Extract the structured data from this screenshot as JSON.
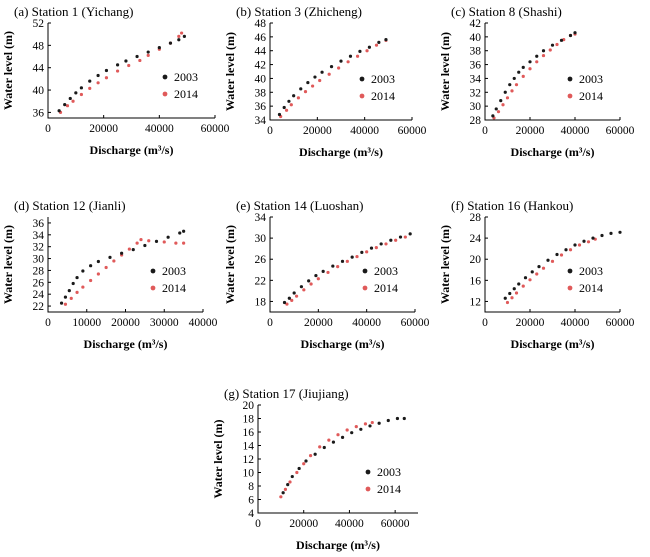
{
  "figure": {
    "colors": {
      "s2003": "#1a1a1a",
      "s2014": "#e05a5a",
      "axis": "#000000"
    },
    "legend_labels": [
      "2003",
      "2014"
    ],
    "xlabel": "Discharge (m³/s)",
    "ylabel": "Water level (m)"
  },
  "chart_data": [
    {
      "type": "scatter",
      "title": "(a) Station 1 (Yichang)",
      "xlabel": "Discharge (m³/s)",
      "ylabel": "Water level (m)",
      "xlim": [
        0,
        60000
      ],
      "ylim": [
        35,
        52
      ],
      "xticks": [
        0,
        20000,
        40000,
        60000
      ],
      "yticks": [
        36,
        40,
        44,
        48,
        52
      ],
      "legend": "right",
      "series": [
        {
          "name": "2003",
          "points": [
            [
              4000,
              36.3
            ],
            [
              6000,
              37.4
            ],
            [
              8000,
              38.5
            ],
            [
              10000,
              39.5
            ],
            [
              12000,
              40.4
            ],
            [
              15000,
              41.6
            ],
            [
              18000,
              42.6
            ],
            [
              21000,
              43.5
            ],
            [
              25000,
              44.5
            ],
            [
              28000,
              45.2
            ],
            [
              32000,
              46.0
            ],
            [
              36000,
              46.8
            ],
            [
              40000,
              47.6
            ],
            [
              44000,
              48.4
            ],
            [
              47000,
              49.0
            ],
            [
              49000,
              49.6
            ]
          ]
        },
        {
          "name": "2014",
          "points": [
            [
              4500,
              36.0
            ],
            [
              7000,
              37.2
            ],
            [
              9000,
              38.0
            ],
            [
              12000,
              39.2
            ],
            [
              15000,
              40.3
            ],
            [
              18000,
              41.3
            ],
            [
              21000,
              42.2
            ],
            [
              25000,
              43.4
            ],
            [
              29000,
              44.4
            ],
            [
              33000,
              45.3
            ],
            [
              36000,
              46.2
            ],
            [
              40000,
              47.3
            ],
            [
              44000,
              48.4
            ],
            [
              47000,
              49.6
            ],
            [
              48000,
              50.2
            ]
          ]
        }
      ]
    },
    {
      "type": "scatter",
      "title": "(b) Station 3 (Zhicheng)",
      "xlabel": "Discharge (m³/s)",
      "ylabel": "Water level (m)",
      "xlim": [
        0,
        60000
      ],
      "ylim": [
        34,
        48
      ],
      "xticks": [
        0,
        20000,
        40000,
        60000
      ],
      "yticks": [
        34,
        36,
        38,
        40,
        42,
        44,
        46,
        48
      ],
      "legend": "right",
      "series": [
        {
          "name": "2003",
          "points": [
            [
              4000,
              34.8
            ],
            [
              6000,
              35.8
            ],
            [
              8000,
              36.7
            ],
            [
              10000,
              37.5
            ],
            [
              13000,
              38.5
            ],
            [
              16000,
              39.4
            ],
            [
              19000,
              40.2
            ],
            [
              22000,
              40.9
            ],
            [
              26000,
              41.7
            ],
            [
              30000,
              42.5
            ],
            [
              34000,
              43.2
            ],
            [
              38000,
              43.9
            ],
            [
              42000,
              44.5
            ],
            [
              46000,
              45.2
            ],
            [
              49000,
              45.6
            ]
          ]
        },
        {
          "name": "2014",
          "points": [
            [
              4500,
              34.5
            ],
            [
              7000,
              35.4
            ],
            [
              9000,
              36.2
            ],
            [
              12000,
              37.2
            ],
            [
              15000,
              38.1
            ],
            [
              18000,
              38.9
            ],
            [
              21000,
              39.7
            ],
            [
              25000,
              40.6
            ],
            [
              29000,
              41.5
            ],
            [
              33000,
              42.4
            ],
            [
              37000,
              43.2
            ],
            [
              41000,
              44.0
            ],
            [
              45000,
              44.8
            ],
            [
              49000,
              45.5
            ]
          ]
        }
      ]
    },
    {
      "type": "scatter",
      "title": "(c) Station 8 (Shashi)",
      "xlabel": "Discharge (m³/s)",
      "ylabel": "Water level (m)",
      "xlim": [
        0,
        60000
      ],
      "ylim": [
        28,
        42
      ],
      "xticks": [
        0,
        20000,
        40000,
        60000
      ],
      "yticks": [
        28,
        30,
        32,
        34,
        36,
        38,
        40,
        42
      ],
      "legend": "right",
      "series": [
        {
          "name": "2003",
          "points": [
            [
              3500,
              28.6
            ],
            [
              5000,
              29.6
            ],
            [
              7000,
              30.8
            ],
            [
              9000,
              32.0
            ],
            [
              11000,
              33.1
            ],
            [
              13000,
              34.0
            ],
            [
              15000,
              34.9
            ],
            [
              17000,
              35.6
            ],
            [
              20000,
              36.4
            ],
            [
              23000,
              37.2
            ],
            [
              26000,
              38.0
            ],
            [
              30000,
              38.8
            ],
            [
              34000,
              39.5
            ],
            [
              38000,
              40.2
            ],
            [
              40000,
              40.6
            ]
          ]
        },
        {
          "name": "2014",
          "points": [
            [
              4000,
              28.3
            ],
            [
              6000,
              29.2
            ],
            [
              8000,
              30.2
            ],
            [
              10000,
              31.2
            ],
            [
              12000,
              32.2
            ],
            [
              14000,
              33.1
            ],
            [
              17000,
              34.3
            ],
            [
              20000,
              35.4
            ],
            [
              23000,
              36.4
            ],
            [
              26000,
              37.3
            ],
            [
              29000,
              38.1
            ],
            [
              32000,
              38.9
            ],
            [
              35000,
              39.6
            ],
            [
              38000,
              40.2
            ],
            [
              40000,
              40.4
            ]
          ]
        }
      ]
    },
    {
      "type": "scatter",
      "title": "(d) Station 12 (Jianli)",
      "xlabel": "Discharge (m³/s)",
      "ylabel": "Water level (m)",
      "xlim": [
        0,
        40000
      ],
      "ylim": [
        21,
        37
      ],
      "xticks": [
        0,
        10000,
        20000,
        30000,
        40000
      ],
      "yticks": [
        22,
        24,
        26,
        28,
        30,
        32,
        34,
        36
      ],
      "legend": "right",
      "series": [
        {
          "name": "2003",
          "points": [
            [
              3500,
              22.5
            ],
            [
              4500,
              23.5
            ],
            [
              5500,
              24.6
            ],
            [
              6500,
              25.8
            ],
            [
              7500,
              26.8
            ],
            [
              9000,
              27.9
            ],
            [
              11000,
              28.8
            ],
            [
              13000,
              29.5
            ],
            [
              16000,
              30.2
            ],
            [
              19000,
              30.9
            ],
            [
              22000,
              31.5
            ],
            [
              25000,
              32.2
            ],
            [
              28000,
              32.9
            ],
            [
              31000,
              33.6
            ],
            [
              34000,
              34.3
            ],
            [
              35000,
              34.6
            ]
          ]
        },
        {
          "name": "2014",
          "points": [
            [
              4500,
              22.3
            ],
            [
              6000,
              23.3
            ],
            [
              7500,
              24.3
            ],
            [
              9000,
              25.2
            ],
            [
              11000,
              26.3
            ],
            [
              13000,
              27.4
            ],
            [
              15000,
              28.5
            ],
            [
              17000,
              29.6
            ],
            [
              19000,
              30.6
            ],
            [
              21000,
              31.6
            ],
            [
              23000,
              32.6
            ],
            [
              24000,
              33.2
            ],
            [
              26000,
              33.0
            ],
            [
              30000,
              32.8
            ],
            [
              33000,
              32.6
            ],
            [
              35000,
              32.6
            ]
          ]
        }
      ]
    },
    {
      "type": "scatter",
      "title": "(e) Station 14 (Luoshan)",
      "xlabel": "Discharge (m³/s)",
      "ylabel": "Water level (m)",
      "xlim": [
        0,
        60000
      ],
      "ylim": [
        16,
        34
      ],
      "xticks": [
        0,
        20000,
        40000,
        60000
      ],
      "yticks": [
        18,
        22,
        26,
        30,
        34
      ],
      "legend": "right",
      "series": [
        {
          "name": "2003",
          "points": [
            [
              6000,
              17.8
            ],
            [
              8000,
              18.6
            ],
            [
              10000,
              19.6
            ],
            [
              13000,
              20.8
            ],
            [
              16000,
              21.9
            ],
            [
              19000,
              22.9
            ],
            [
              22000,
              23.7
            ],
            [
              26000,
              24.7
            ],
            [
              30000,
              25.6
            ],
            [
              34000,
              26.4
            ],
            [
              38000,
              27.3
            ],
            [
              42000,
              28.1
            ],
            [
              46000,
              28.9
            ],
            [
              50000,
              29.6
            ],
            [
              54000,
              30.2
            ],
            [
              58000,
              30.8
            ]
          ]
        },
        {
          "name": "2014",
          "points": [
            [
              7000,
              17.5
            ],
            [
              9000,
              18.2
            ],
            [
              11000,
              19.0
            ],
            [
              14000,
              20.2
            ],
            [
              17000,
              21.3
            ],
            [
              20000,
              22.3
            ],
            [
              24000,
              23.5
            ],
            [
              28000,
              24.6
            ],
            [
              32000,
              25.6
            ],
            [
              36000,
              26.5
            ],
            [
              40000,
              27.4
            ],
            [
              44000,
              28.2
            ],
            [
              48000,
              28.9
            ],
            [
              52000,
              29.6
            ],
            [
              56000,
              30.2
            ]
          ]
        }
      ]
    },
    {
      "type": "scatter",
      "title": "(f) Station 16 (Hankou)",
      "xlabel": "Discharge (m³/s)",
      "ylabel": "Water level (m)",
      "xlim": [
        0,
        60000
      ],
      "ylim": [
        10,
        28
      ],
      "xticks": [
        0,
        20000,
        40000,
        60000
      ],
      "yticks": [
        12,
        16,
        20,
        24,
        28
      ],
      "legend": "right",
      "series": [
        {
          "name": "2003",
          "points": [
            [
              9000,
              12.6
            ],
            [
              11000,
              13.5
            ],
            [
              13000,
              14.4
            ],
            [
              15000,
              15.3
            ],
            [
              18000,
              16.5
            ],
            [
              21000,
              17.6
            ],
            [
              24000,
              18.6
            ],
            [
              28000,
              19.8
            ],
            [
              32000,
              20.9
            ],
            [
              36000,
              21.8
            ],
            [
              40000,
              22.7
            ],
            [
              44000,
              23.4
            ],
            [
              48000,
              24.0
            ],
            [
              52000,
              24.5
            ],
            [
              56000,
              24.9
            ],
            [
              60000,
              25.1
            ]
          ]
        },
        {
          "name": "2014",
          "points": [
            [
              10000,
              11.8
            ],
            [
              12000,
              12.7
            ],
            [
              14000,
              13.6
            ],
            [
              17000,
              14.9
            ],
            [
              20000,
              16.1
            ],
            [
              23000,
              17.2
            ],
            [
              26000,
              18.3
            ],
            [
              30000,
              19.6
            ],
            [
              34000,
              20.8
            ],
            [
              38000,
              21.8
            ],
            [
              42000,
              22.7
            ],
            [
              46000,
              23.3
            ],
            [
              49000,
              23.8
            ]
          ]
        }
      ]
    },
    {
      "type": "scatter",
      "title": "(g) Station 17 (Jiujiang)",
      "xlabel": "Discharge (m³/s)",
      "ylabel": "Water level (m)",
      "xlim": [
        0,
        70000
      ],
      "ylim": [
        4,
        20
      ],
      "xticks": [
        0,
        20000,
        40000,
        60000
      ],
      "yticks": [
        4,
        6,
        8,
        10,
        12,
        14,
        16,
        18,
        20
      ],
      "legend": "right",
      "series": [
        {
          "name": "2003",
          "points": [
            [
              11000,
              7.0
            ],
            [
              13000,
              8.2
            ],
            [
              15000,
              9.4
            ],
            [
              18000,
              10.6
            ],
            [
              21000,
              11.7
            ],
            [
              25000,
              12.7
            ],
            [
              29000,
              13.7
            ],
            [
              33000,
              14.5
            ],
            [
              37000,
              15.2
            ],
            [
              41000,
              15.9
            ],
            [
              45000,
              16.4
            ],
            [
              49000,
              16.9
            ],
            [
              53000,
              17.3
            ],
            [
              57000,
              17.7
            ],
            [
              61000,
              18.0
            ],
            [
              64000,
              18.0
            ]
          ]
        },
        {
          "name": "2014",
          "points": [
            [
              10000,
              6.4
            ],
            [
              12000,
              7.5
            ],
            [
              14000,
              8.6
            ],
            [
              17000,
              10.0
            ],
            [
              20000,
              11.3
            ],
            [
              23000,
              12.5
            ],
            [
              27000,
              13.8
            ],
            [
              31000,
              14.8
            ],
            [
              35000,
              15.6
            ],
            [
              39000,
              16.3
            ],
            [
              43000,
              16.8
            ],
            [
              47000,
              17.2
            ],
            [
              50000,
              17.4
            ]
          ]
        }
      ]
    }
  ]
}
